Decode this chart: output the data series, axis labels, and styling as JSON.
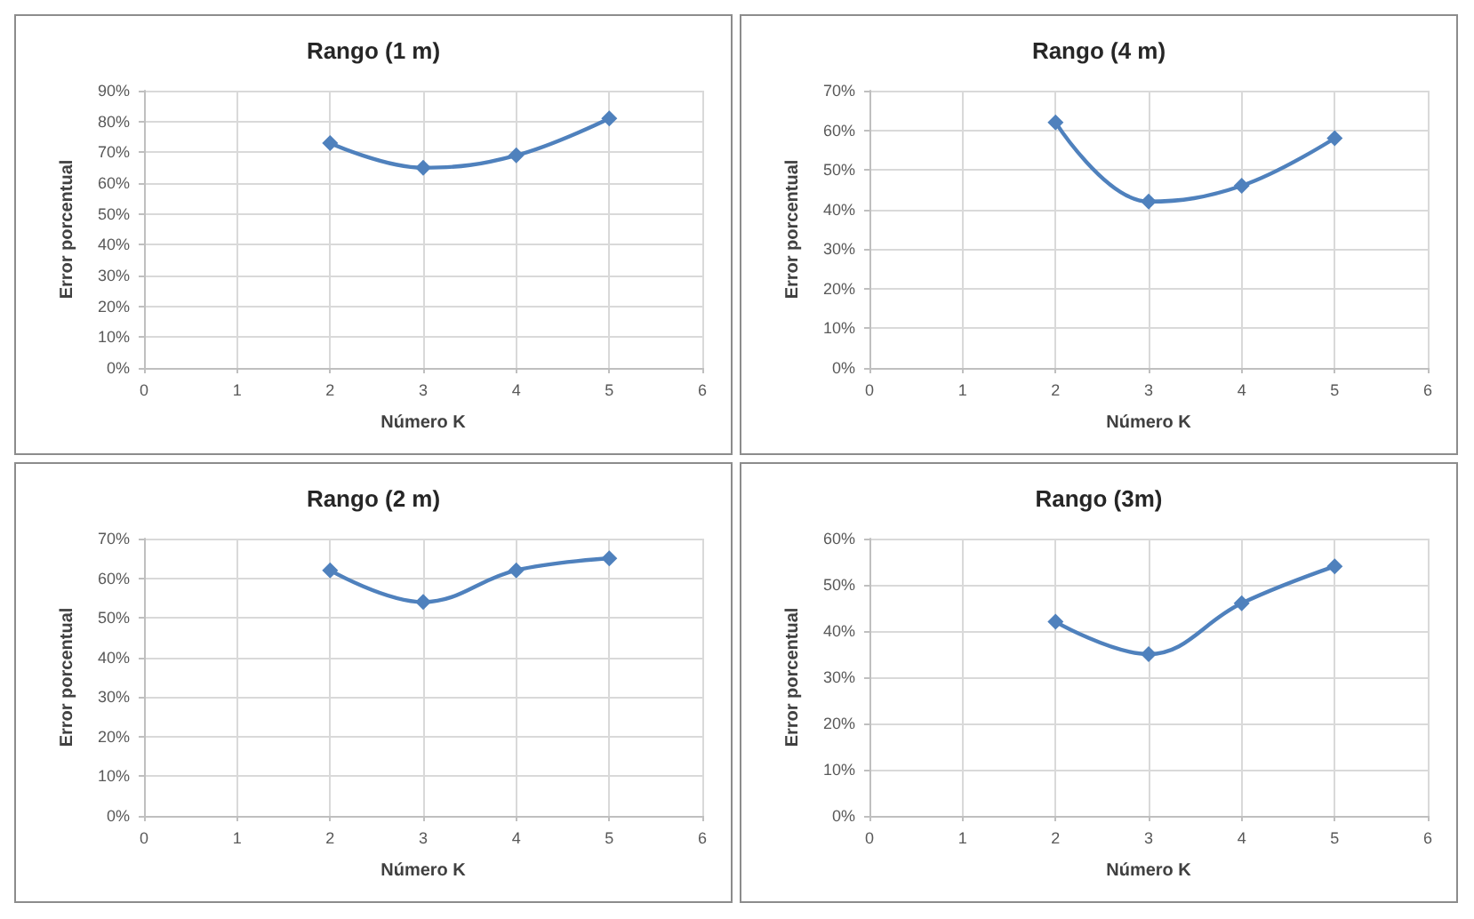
{
  "chart_data": [
    {
      "type": "line",
      "title": "Rango (1 m)",
      "xlabel": "Número K",
      "ylabel": "Error porcentual",
      "x": [
        2,
        3,
        4,
        5
      ],
      "series": [
        {
          "color": "#4f81bd",
          "values": [
            73,
            65,
            69,
            81
          ]
        }
      ],
      "xlim": [
        0,
        6
      ],
      "xticks": [
        0,
        1,
        2,
        3,
        4,
        5,
        6
      ],
      "ylim": [
        0,
        90
      ],
      "yticks": [
        {
          "value": 0,
          "label": "0%"
        },
        {
          "value": 10,
          "label": "10%"
        },
        {
          "value": 20,
          "label": "20%"
        },
        {
          "value": 30,
          "label": "30%"
        },
        {
          "value": 40,
          "label": "40%"
        },
        {
          "value": 50,
          "label": "50%"
        },
        {
          "value": 60,
          "label": "60%"
        },
        {
          "value": 70,
          "label": "70%"
        },
        {
          "value": 80,
          "label": "80%"
        },
        {
          "value": 90,
          "label": "90%"
        }
      ],
      "grid": true,
      "marker": "diamond",
      "line_style": "solid"
    },
    {
      "type": "line",
      "title": "Rango (4 m)",
      "xlabel": "Número K",
      "ylabel": "Error porcentual",
      "x": [
        2,
        3,
        4,
        5
      ],
      "series": [
        {
          "color": "#4f81bd",
          "values": [
            62,
            42,
            46,
            58
          ]
        }
      ],
      "xlim": [
        0,
        6
      ],
      "xticks": [
        0,
        1,
        2,
        3,
        4,
        5,
        6
      ],
      "ylim": [
        0,
        70
      ],
      "yticks": [
        {
          "value": 0,
          "label": "0%"
        },
        {
          "value": 10,
          "label": "10%"
        },
        {
          "value": 20,
          "label": "20%"
        },
        {
          "value": 30,
          "label": "30%"
        },
        {
          "value": 40,
          "label": "40%"
        },
        {
          "value": 50,
          "label": "50%"
        },
        {
          "value": 60,
          "label": "60%"
        },
        {
          "value": 70,
          "label": "70%"
        }
      ],
      "grid": true,
      "marker": "diamond",
      "line_style": "solid"
    },
    {
      "type": "line",
      "title": "Rango (2 m)",
      "xlabel": "Número K",
      "ylabel": "Error porcentual",
      "x": [
        2,
        3,
        4,
        5
      ],
      "series": [
        {
          "color": "#4f81bd",
          "values": [
            62,
            54,
            62,
            65
          ]
        }
      ],
      "xlim": [
        0,
        6
      ],
      "xticks": [
        0,
        1,
        2,
        3,
        4,
        5,
        6
      ],
      "ylim": [
        0,
        70
      ],
      "yticks": [
        {
          "value": 0,
          "label": "0%"
        },
        {
          "value": 10,
          "label": "10%"
        },
        {
          "value": 20,
          "label": "20%"
        },
        {
          "value": 30,
          "label": "30%"
        },
        {
          "value": 40,
          "label": "40%"
        },
        {
          "value": 50,
          "label": "50%"
        },
        {
          "value": 60,
          "label": "60%"
        },
        {
          "value": 70,
          "label": "70%"
        }
      ],
      "grid": true,
      "marker": "diamond",
      "line_style": "solid"
    },
    {
      "type": "line",
      "title": "Rango (3m)",
      "xlabel": "Número K",
      "ylabel": "Error porcentual",
      "x": [
        2,
        3,
        4,
        5
      ],
      "series": [
        {
          "color": "#4f81bd",
          "values": [
            42,
            35,
            46,
            54
          ]
        }
      ],
      "xlim": [
        0,
        6
      ],
      "xticks": [
        0,
        1,
        2,
        3,
        4,
        5,
        6
      ],
      "ylim": [
        0,
        60
      ],
      "yticks": [
        {
          "value": 0,
          "label": "0%"
        },
        {
          "value": 10,
          "label": "10%"
        },
        {
          "value": 20,
          "label": "20%"
        },
        {
          "value": 30,
          "label": "30%"
        },
        {
          "value": 40,
          "label": "40%"
        },
        {
          "value": 50,
          "label": "50%"
        },
        {
          "value": 60,
          "label": "60%"
        }
      ],
      "grid": true,
      "marker": "diamond",
      "line_style": "solid"
    }
  ]
}
